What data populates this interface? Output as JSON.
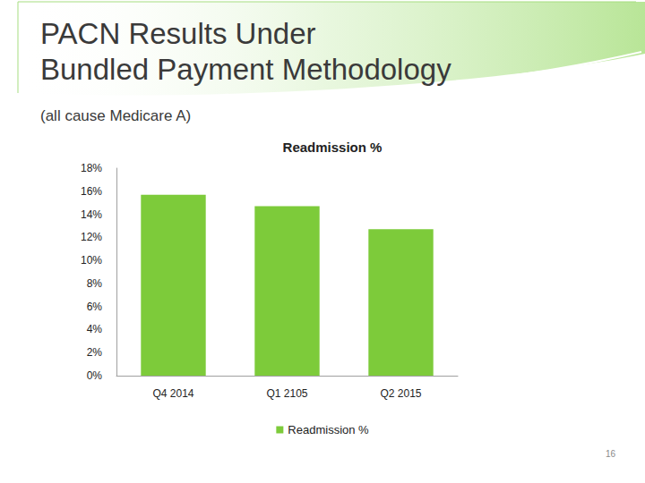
{
  "slide": {
    "title_lines": [
      "PACN Results Under",
      "Bundled Payment Methodology"
    ],
    "subtitle": "(all cause Medicare A)",
    "page_number": 16
  },
  "chart_data": {
    "type": "bar",
    "title": "Readmission %",
    "categories": [
      "Q4 2014",
      "Q1 2105",
      "Q2 2015"
    ],
    "series": [
      {
        "name": "Readmission %",
        "color": "#7dcb3a",
        "values": [
          15.7,
          14.7,
          12.7
        ]
      }
    ],
    "ylim": [
      0,
      18
    ],
    "yticks": [
      {
        "value": 0,
        "label": "0%"
      },
      {
        "value": 2,
        "label": "2%"
      },
      {
        "value": 4,
        "label": "4%"
      },
      {
        "value": 6,
        "label": "6%"
      },
      {
        "value": 8,
        "label": "8%"
      },
      {
        "value": 10,
        "label": "10%"
      },
      {
        "value": 12,
        "label": "12%"
      },
      {
        "value": 14,
        "label": "14%"
      },
      {
        "value": 16,
        "label": "16%"
      },
      {
        "value": 18,
        "label": "18%"
      }
    ],
    "grid": false,
    "legend": "bottom"
  }
}
